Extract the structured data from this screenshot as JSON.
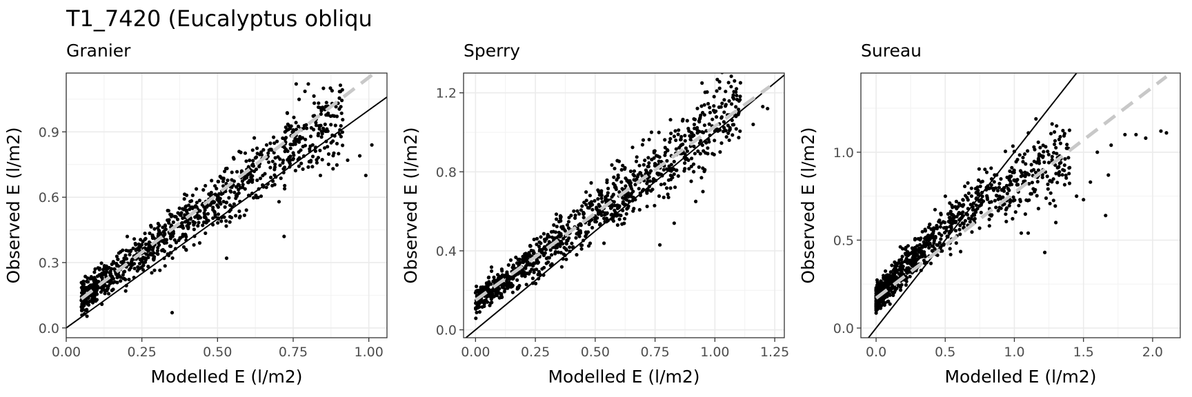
{
  "title": "T1_7420 (Eucalyptus obliqu",
  "chart_data": [
    {
      "type": "scatter",
      "subtitle": "Granier",
      "xlabel": "Modelled E (l/m2)",
      "ylabel": "Observed E (l/m2)",
      "xlim": [
        0.0,
        1.06
      ],
      "ylim": [
        -0.045,
        1.17
      ],
      "xticks": [
        0.0,
        0.25,
        0.5,
        0.75,
        1.0
      ],
      "xtick_labels": [
        "0.00",
        "0.25",
        "0.50",
        "0.75",
        "1.00"
      ],
      "yticks": [
        0.0,
        0.3,
        0.6,
        0.9
      ],
      "ytick_labels": [
        "0.0",
        "0.3",
        "0.6",
        "0.9"
      ],
      "grid": true,
      "x_range": [
        0.05,
        1.01
      ],
      "identity_line": {
        "slope": 1,
        "intercept": 0,
        "style": "solid",
        "color": "#000000"
      },
      "fit_line": {
        "slope": 1.07,
        "intercept": 0.08,
        "x_range": [
          0.05,
          1.01
        ],
        "style": "dashed",
        "color": "#c8c8c8"
      },
      "n_points": 1000,
      "outliers": [
        [
          0.76,
          1.12
        ],
        [
          0.8,
          1.12
        ],
        [
          0.85,
          1.1
        ],
        [
          0.9,
          0.8
        ],
        [
          0.93,
          0.77
        ],
        [
          0.97,
          0.79
        ],
        [
          0.99,
          0.7
        ],
        [
          1.01,
          0.84
        ],
        [
          0.72,
          0.42
        ],
        [
          0.53,
          0.32
        ],
        [
          0.35,
          0.07
        ],
        [
          0.84,
          0.7
        ]
      ]
    },
    {
      "type": "scatter",
      "subtitle": "Sperry",
      "xlabel": "Modelled E (l/m2)",
      "ylabel": "Observed E (l/m2)",
      "xlim": [
        -0.05,
        1.29
      ],
      "ylim": [
        -0.04,
        1.3
      ],
      "xticks": [
        0.0,
        0.25,
        0.5,
        0.75,
        1.0,
        1.25
      ],
      "xtick_labels": [
        "0.00",
        "0.25",
        "0.50",
        "0.75",
        "1.00",
        "1.25"
      ],
      "yticks": [
        0.0,
        0.4,
        0.8,
        1.2
      ],
      "ytick_labels": [
        "0.0",
        "0.4",
        "0.8",
        "1.2"
      ],
      "grid": true,
      "x_range": [
        0.0,
        1.23
      ],
      "identity_line": {
        "slope": 1,
        "intercept": 0,
        "style": "solid",
        "color": "#000000"
      },
      "fit_line": {
        "slope": 0.88,
        "intercept": 0.15,
        "x_range": [
          0.0,
          1.23
        ],
        "style": "dashed",
        "color": "#c8c8c8"
      },
      "n_points": 1000,
      "outliers": [
        [
          1.22,
          1.12
        ],
        [
          1.2,
          1.13
        ],
        [
          1.1,
          1.1
        ],
        [
          1.16,
          1.04
        ],
        [
          1.06,
          0.96
        ],
        [
          0.95,
          0.7
        ],
        [
          0.92,
          0.65
        ],
        [
          0.77,
          0.43
        ],
        [
          0.98,
          1.1
        ],
        [
          0.83,
          0.54
        ]
      ]
    },
    {
      "type": "scatter",
      "subtitle": "Sureau",
      "xlabel": "Modelled E (l/m2)",
      "ylabel": "Observed E (l/m2)",
      "xlim": [
        -0.11,
        2.2
      ],
      "ylim": [
        -0.055,
        1.45
      ],
      "xticks": [
        0.0,
        0.5,
        1.0,
        1.5,
        2.0
      ],
      "xtick_labels": [
        "0.0",
        "0.5",
        "1.0",
        "1.5",
        "2.0"
      ],
      "yticks": [
        0.0,
        0.5,
        1.0
      ],
      "ytick_labels": [
        "0.0",
        "0.5",
        "1.0"
      ],
      "grid": true,
      "x_range": [
        0.0,
        2.1
      ],
      "identity_line": {
        "slope": 1,
        "intercept": 0,
        "style": "solid",
        "color": "#000000"
      },
      "fit_line": {
        "slope": 0.6,
        "intercept": 0.17,
        "x_range": [
          0.0,
          2.1
        ],
        "style": "dashed",
        "color": "#c8c8c8"
      },
      "n_points": 1000,
      "outliers": [
        [
          2.06,
          1.12
        ],
        [
          2.1,
          1.11
        ],
        [
          1.95,
          1.08
        ],
        [
          1.88,
          1.1
        ],
        [
          1.8,
          1.1
        ],
        [
          1.7,
          1.04
        ],
        [
          1.6,
          1.0
        ],
        [
          1.55,
          0.83
        ],
        [
          1.5,
          0.73
        ],
        [
          1.45,
          0.75
        ],
        [
          1.68,
          0.87
        ],
        [
          1.66,
          0.64
        ],
        [
          1.22,
          0.43
        ],
        [
          1.05,
          0.54
        ],
        [
          1.1,
          0.54
        ],
        [
          1.3,
          0.6
        ]
      ]
    }
  ]
}
